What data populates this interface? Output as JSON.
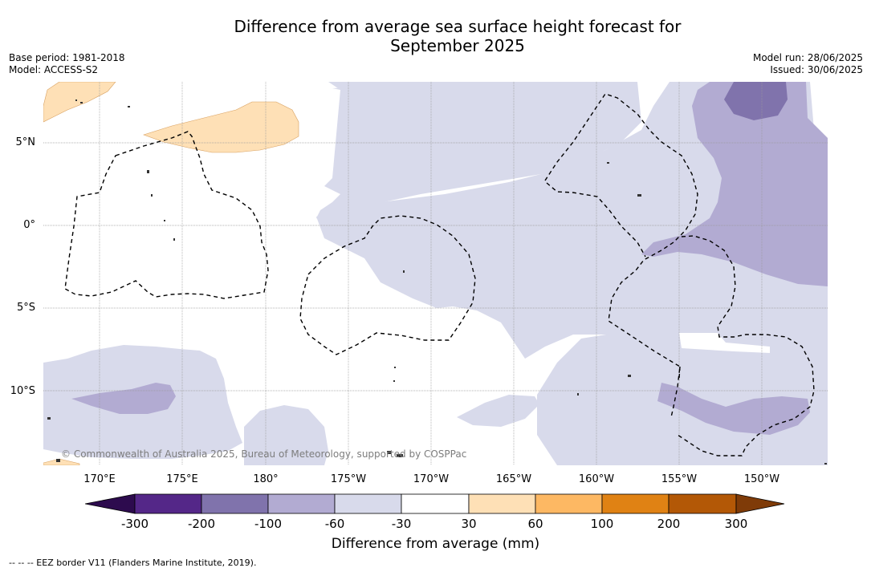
{
  "title": {
    "line1": "Difference from average sea surface height forecast for",
    "line2": "September 2025"
  },
  "meta": {
    "base_period": "Base period: 1981-2018",
    "model": "Model: ACCESS-S2",
    "model_run": "Model run: 28/06/2025",
    "issued": "Issued: 30/06/2025"
  },
  "axes": {
    "lat_labels": [
      "5°N",
      "0°",
      "5°S",
      "10°S"
    ],
    "lon_labels": [
      "170°E",
      "175°E",
      "180°",
      "175°W",
      "170°W",
      "165°W",
      "160°W",
      "155°W",
      "150°W"
    ]
  },
  "copyright": "© Commonwealth of Australia 2025, Bureau of Meteorology, supported by COSPPac",
  "legend": {
    "ticks": [
      "-300",
      "-200",
      "-100",
      "-60",
      "-30",
      "30",
      "60",
      "100",
      "200",
      "300"
    ],
    "label": "Difference from average (mm)",
    "colors": {
      "below_300": "#2d0b4e",
      "m300_m200": "#542788",
      "m200_m100": "#8073ac",
      "m100_m60": "#b2abd2",
      "m60_m30": "#d8daeb",
      "m30_30": "#ffffff",
      "p30_p60": "#fee0b6",
      "p60_p100": "#fdb863",
      "p100_p200": "#e08214",
      "p200_p300": "#b35806",
      "above_300": "#7f3b08"
    }
  },
  "footer": "--  --  -- EEZ border V11 (Flanders Marine Institute, 2019)."
}
